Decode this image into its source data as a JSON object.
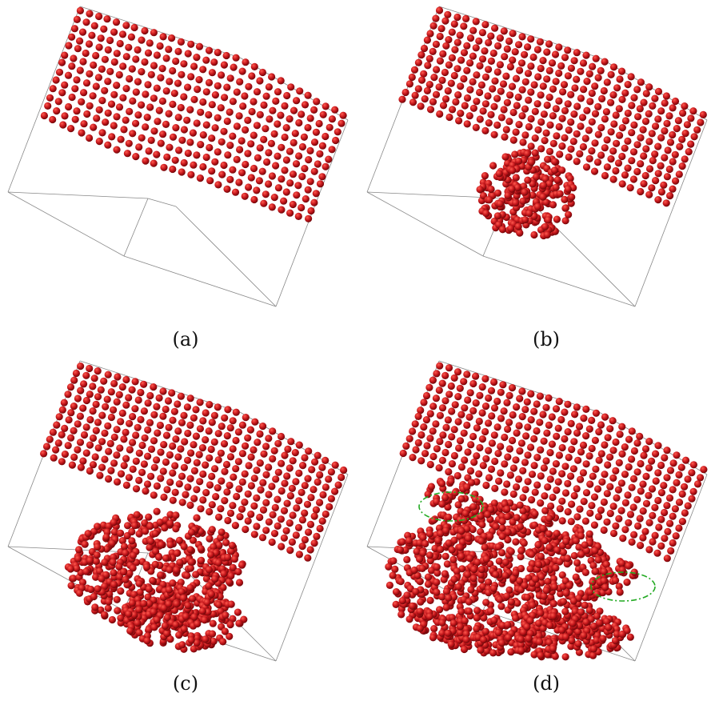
{
  "figure": {
    "panels": [
      {
        "id": "a",
        "caption": "(a)",
        "stage": "initial",
        "highlight_regions": 0
      },
      {
        "id": "b",
        "caption": "(b)",
        "stage": "sagging",
        "highlight_regions": 0
      },
      {
        "id": "c",
        "caption": "(c)",
        "stage": "collapsing",
        "highlight_regions": 0
      },
      {
        "id": "d",
        "caption": "(d)",
        "stage": "collapsed",
        "highlight_regions": 2
      }
    ],
    "colors": {
      "particle": "#c4161b",
      "particle_highlight": "#ff5a4f",
      "particle_shadow": "#6e0508",
      "box_edge": "#888888",
      "highlight_ellipse": "#22aa22"
    }
  }
}
